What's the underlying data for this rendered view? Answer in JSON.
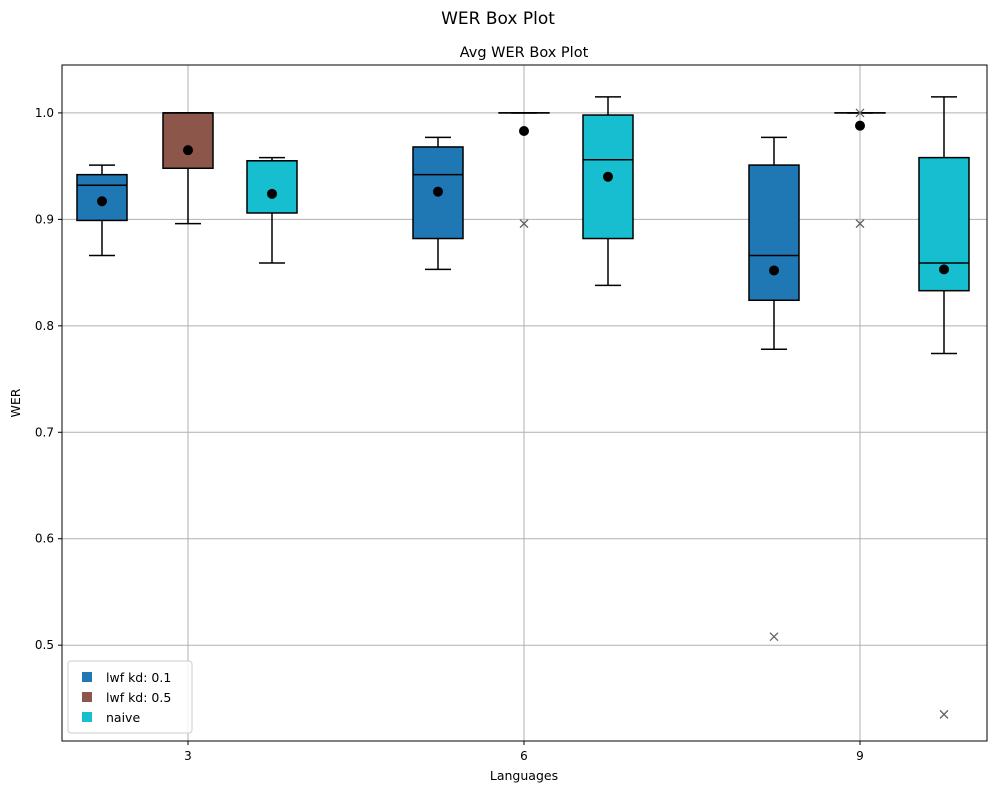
{
  "figure": {
    "suptitle": "WER Box Plot"
  },
  "chart_data": {
    "type": "box",
    "title": "Avg WER Box Plot",
    "xlabel": "Languages",
    "ylabel": "WER",
    "categories": [
      "3",
      "6",
      "9"
    ],
    "ylim": [
      0.41,
      1.045
    ],
    "yticks": [
      0.5,
      0.6,
      0.7,
      0.8,
      0.9,
      1.0
    ],
    "ytick_labels": [
      "0.5",
      "0.6",
      "0.7",
      "0.8",
      "0.9",
      "1.0"
    ],
    "grid": true,
    "legend_position": "lower-left",
    "series": [
      {
        "name": "lwf kd: 0.1",
        "color": "#1f77b4",
        "boxes": [
          {
            "category": "3",
            "whisker_low": 0.866,
            "q1": 0.899,
            "median": 0.932,
            "q3": 0.942,
            "whisker_high": 0.951,
            "mean": 0.917,
            "outliers": []
          },
          {
            "category": "6",
            "whisker_low": 0.853,
            "q1": 0.882,
            "median": 0.942,
            "q3": 0.968,
            "whisker_high": 0.977,
            "mean": 0.926,
            "outliers": []
          },
          {
            "category": "9",
            "whisker_low": 0.778,
            "q1": 0.824,
            "median": 0.866,
            "q3": 0.951,
            "whisker_high": 0.977,
            "mean": 0.852,
            "outliers": [
              0.508
            ]
          }
        ]
      },
      {
        "name": "lwf kd: 0.5",
        "color": "#8c564b",
        "boxes": [
          {
            "category": "3",
            "whisker_low": 0.896,
            "q1": 0.948,
            "median": 1.0,
            "q3": 1.0,
            "whisker_high": 1.0,
            "mean": 0.965,
            "outliers": []
          },
          {
            "category": "6",
            "whisker_low": 1.0,
            "q1": 1.0,
            "median": 1.0,
            "q3": 1.0,
            "whisker_high": 1.0,
            "mean": 0.983,
            "outliers": [
              0.896
            ]
          },
          {
            "category": "9",
            "whisker_low": 1.0,
            "q1": 1.0,
            "median": 1.0,
            "q3": 1.0,
            "whisker_high": 1.0,
            "mean": 0.988,
            "outliers": [
              0.896,
              1.0
            ]
          }
        ]
      },
      {
        "name": "naive",
        "color": "#17becf",
        "boxes": [
          {
            "category": "3",
            "whisker_low": 0.859,
            "q1": 0.906,
            "median": 0.955,
            "q3": 0.955,
            "whisker_high": 0.958,
            "mean": 0.924,
            "outliers": []
          },
          {
            "category": "6",
            "whisker_low": 0.838,
            "q1": 0.882,
            "median": 0.956,
            "q3": 0.998,
            "whisker_high": 1.015,
            "mean": 0.94,
            "outliers": []
          },
          {
            "category": "9",
            "whisker_low": 0.774,
            "q1": 0.833,
            "median": 0.859,
            "q3": 0.958,
            "whisker_high": 1.015,
            "mean": 0.853,
            "outliers": [
              0.435
            ]
          }
        ]
      }
    ]
  }
}
